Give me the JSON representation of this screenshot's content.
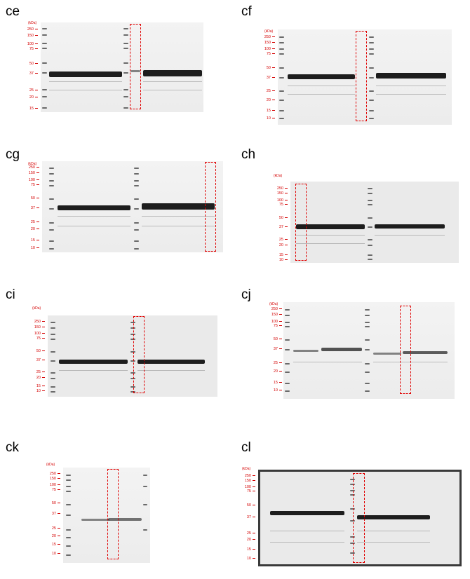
{
  "unit_label": "(kDa)",
  "colors": {
    "annotation": "#d40000",
    "highlight_box": "#e00000",
    "band": "#1d1d1d"
  },
  "panels": [
    {
      "label": "ce",
      "markers": [
        "250",
        "150",
        "100",
        "75",
        "50",
        "37",
        "25",
        "20",
        "15"
      ]
    },
    {
      "label": "cf",
      "markers": [
        "250",
        "150",
        "100",
        "75",
        "50",
        "37",
        "25",
        "20",
        "15",
        "10"
      ]
    },
    {
      "label": "cg",
      "markers": [
        "250",
        "150",
        "100",
        "75",
        "50",
        "37",
        "25",
        "20",
        "15",
        "10"
      ]
    },
    {
      "label": "ch",
      "markers": [
        "250",
        "150",
        "100",
        "75",
        "50",
        "37",
        "25",
        "20",
        "15",
        "10"
      ]
    },
    {
      "label": "ci",
      "markers": [
        "250",
        "150",
        "100",
        "75",
        "50",
        "37",
        "25",
        "20",
        "15",
        "10"
      ]
    },
    {
      "label": "cj",
      "markers": [
        "250",
        "150",
        "100",
        "75",
        "50",
        "37",
        "25",
        "20",
        "15",
        "10"
      ]
    },
    {
      "label": "ck",
      "markers": [
        "250",
        "150",
        "100",
        "75",
        "50",
        "37",
        "25",
        "20",
        "15",
        "10"
      ]
    },
    {
      "label": "cl",
      "markers": [
        "250",
        "150",
        "100",
        "75",
        "50",
        "37",
        "25",
        "20",
        "15",
        "10"
      ]
    }
  ]
}
